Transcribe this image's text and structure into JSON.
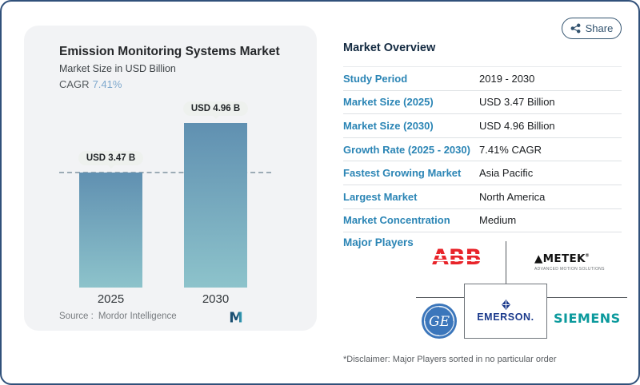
{
  "colors": {
    "frame_border": "#30507a",
    "accent_blue": "#2b85b5",
    "cagr_blue": "#7ea8cd",
    "bar_gradient_top": "#6090b1",
    "bar_gradient_bottom": "#8dc3cb",
    "abb_red": "#e8242a",
    "siemens_teal": "#0c9a9d",
    "ge_blue": "#3b76bb",
    "emerson_navy": "#1b3a8c"
  },
  "share": {
    "label": "Share"
  },
  "chart_panel": {
    "title": "Emission Monitoring Systems Market",
    "subtitle": "Market Size in USD Billion",
    "cagr_label": "CAGR",
    "cagr_value": "7.41%",
    "source_label": "Source :",
    "source_value": "Mordor Intelligence",
    "logo_text": "M"
  },
  "chart_data": {
    "type": "bar",
    "title": "Emission Monitoring Systems Market",
    "ylabel": "Market Size in USD Billion",
    "categories": [
      "2025",
      "2030"
    ],
    "values": [
      3.47,
      4.96
    ],
    "bar_labels": [
      "USD 3.47 B",
      "USD 4.96 B"
    ],
    "reference_line": 3.47,
    "grid": false,
    "legend": false
  },
  "overview": {
    "title": "Market Overview",
    "rows": [
      {
        "label": "Study Period",
        "value": "2019 - 2030"
      },
      {
        "label": "Market Size (2025)",
        "value": "USD 3.47 Billion"
      },
      {
        "label": "Market Size (2030)",
        "value": "USD 4.96 Billion"
      },
      {
        "label": "Growth Rate (2025 - 2030)",
        "value": "7.41% CAGR"
      },
      {
        "label": "Fastest Growing Market",
        "value": "Asia Pacific"
      },
      {
        "label": "Largest Market",
        "value": "North America"
      },
      {
        "label": "Market Concentration",
        "value": "Medium"
      }
    ]
  },
  "players": {
    "label": "Major Players",
    "abb": "ABB",
    "ametek": {
      "text": "▲METEK",
      "reg": "®",
      "tagline": "ADVANCED MOTION SOLUTIONS"
    },
    "ge": "GE",
    "emerson": "EMERSON.",
    "siemens": "SIEMENS",
    "disclaimer": "*Disclaimer: Major Players sorted in no particular order"
  }
}
